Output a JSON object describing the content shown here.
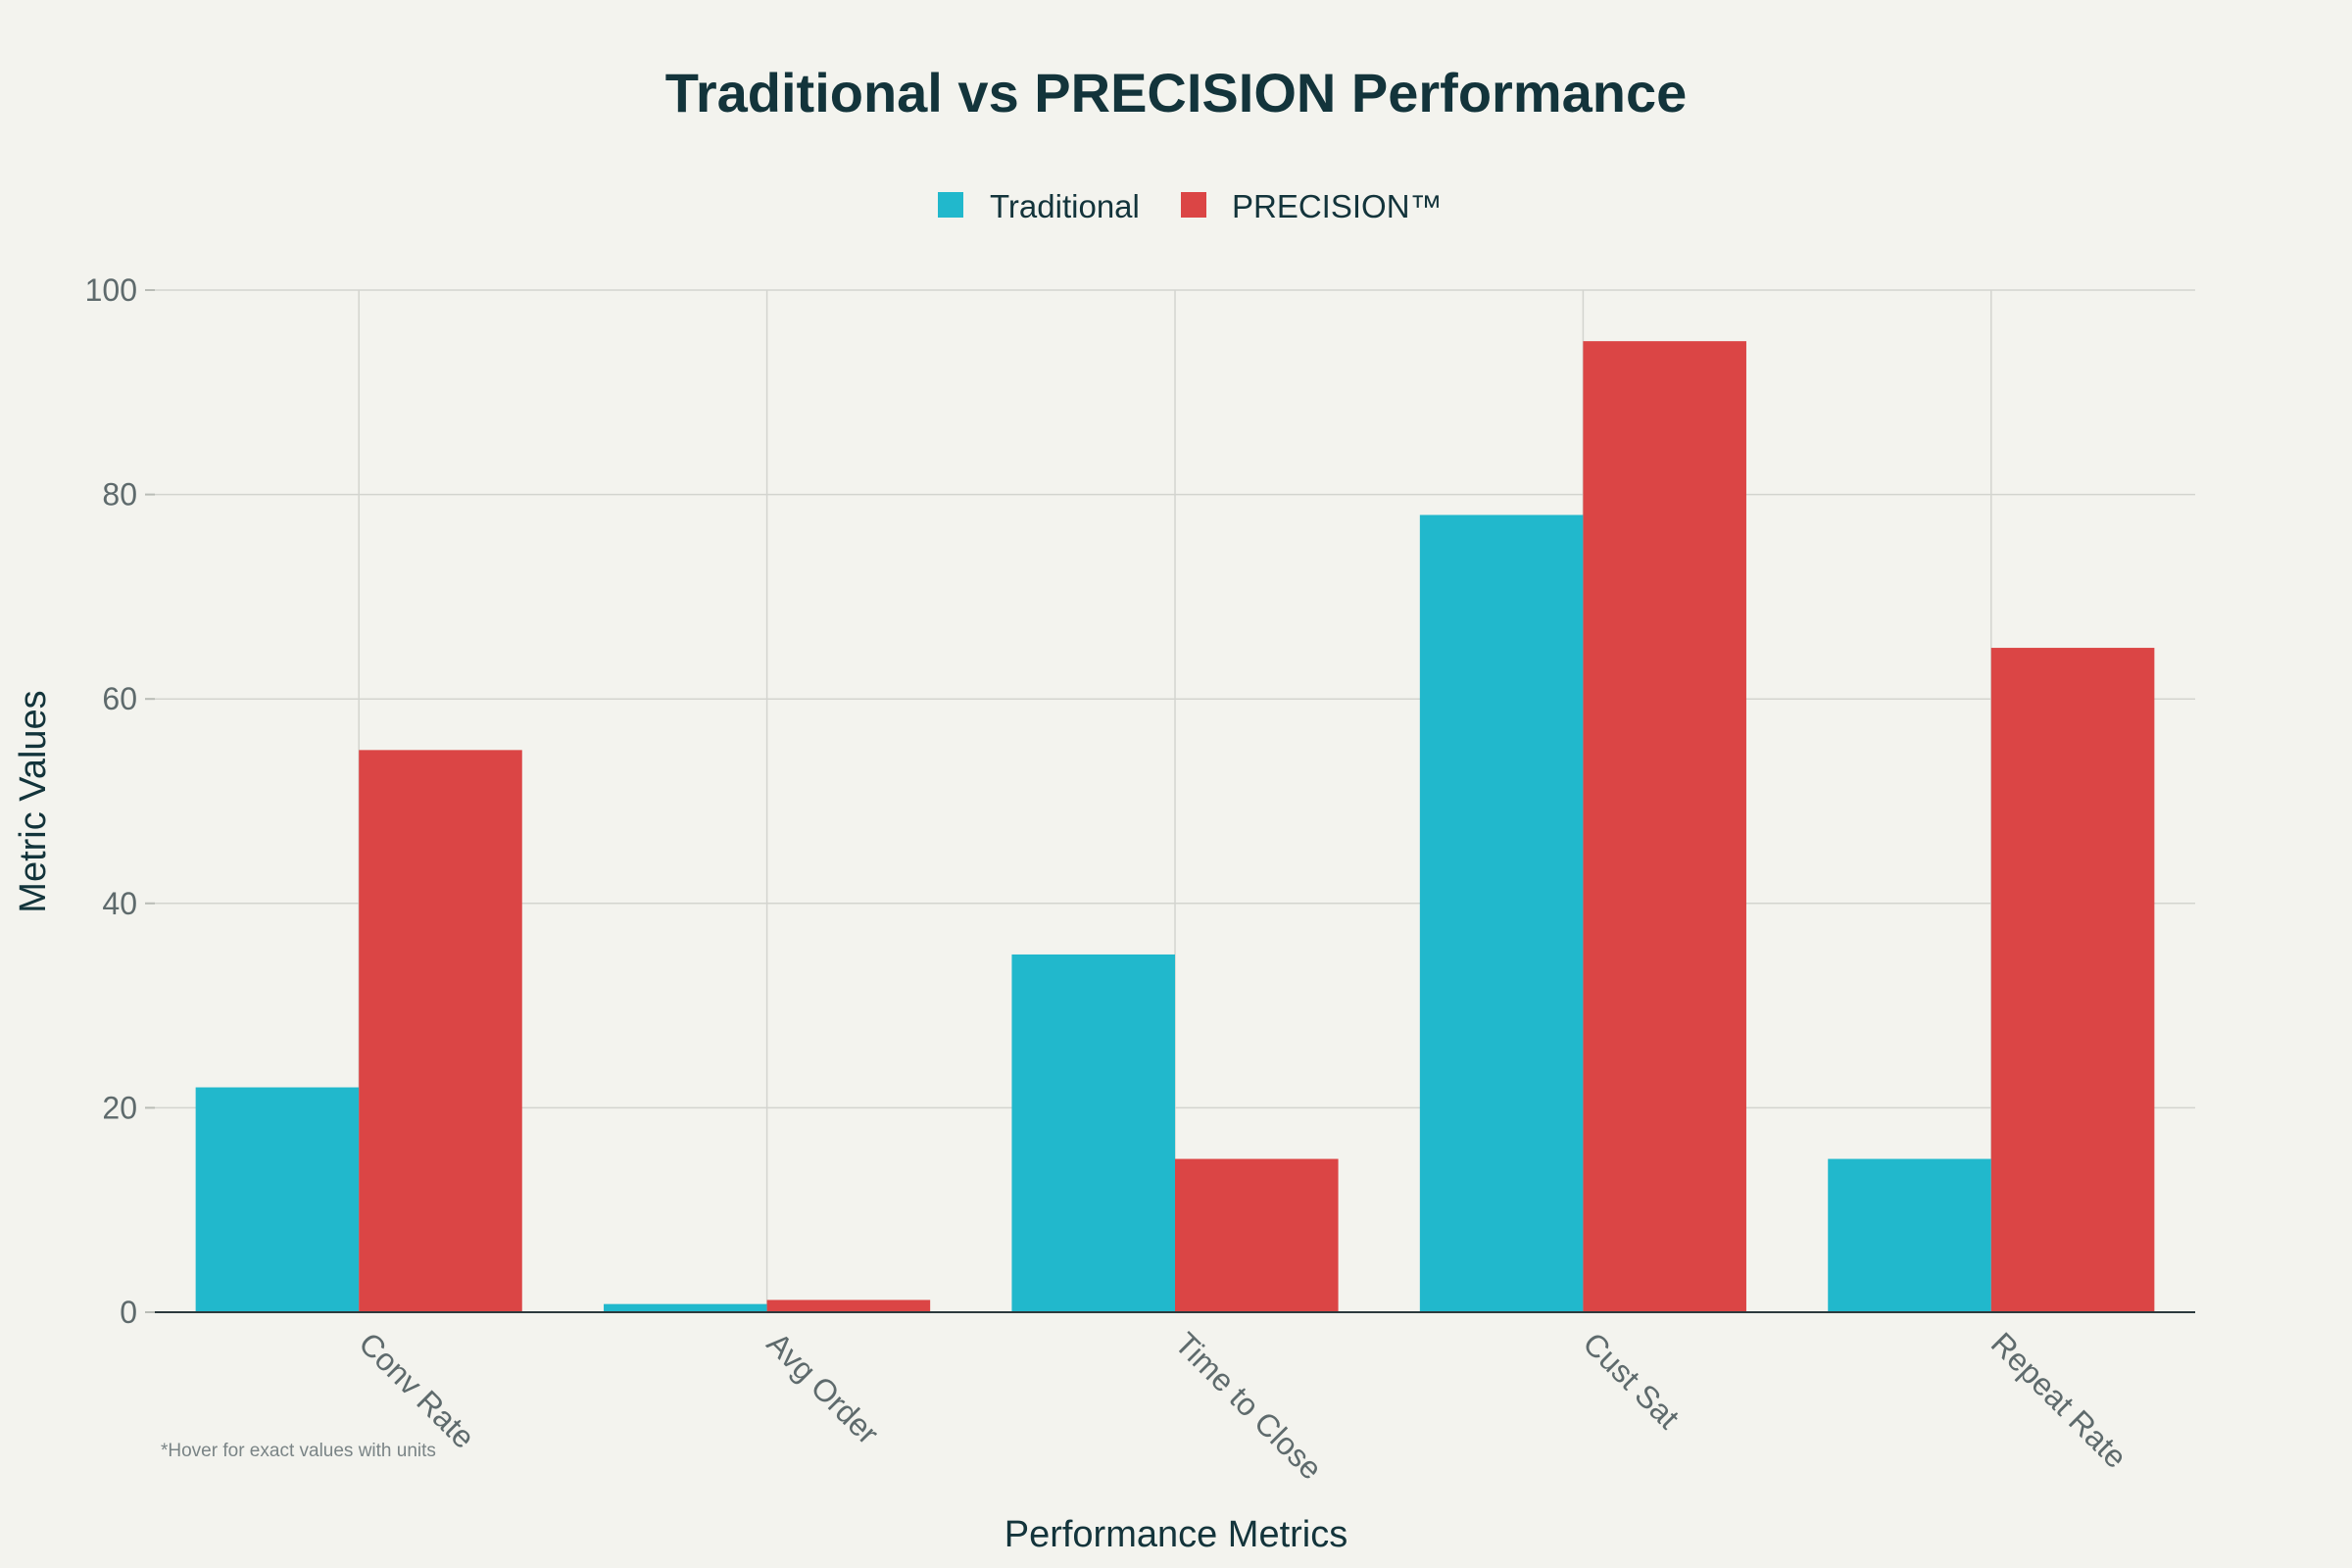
{
  "chart_data": {
    "type": "bar",
    "title": "Traditional vs PRECISION Performance",
    "xlabel": "Performance Metrics",
    "ylabel": "Metric Values",
    "categories": [
      "Conv Rate",
      "Avg Order",
      "Time to Close",
      "Cust Sat",
      "Repeat Rate"
    ],
    "series": [
      {
        "name": "Traditional",
        "color": "#21b8cc",
        "values": [
          22,
          0.8,
          35,
          78,
          15
        ]
      },
      {
        "name": "PRECISION™",
        "color": "#db4545",
        "values": [
          55,
          1.2,
          15,
          95,
          65
        ]
      }
    ],
    "ylim": [
      0,
      100
    ],
    "yticks": [
      0,
      20,
      40,
      60,
      80,
      100
    ],
    "grid": true,
    "legend_position": "top-center",
    "footnote": "*Hover for exact values with units"
  }
}
